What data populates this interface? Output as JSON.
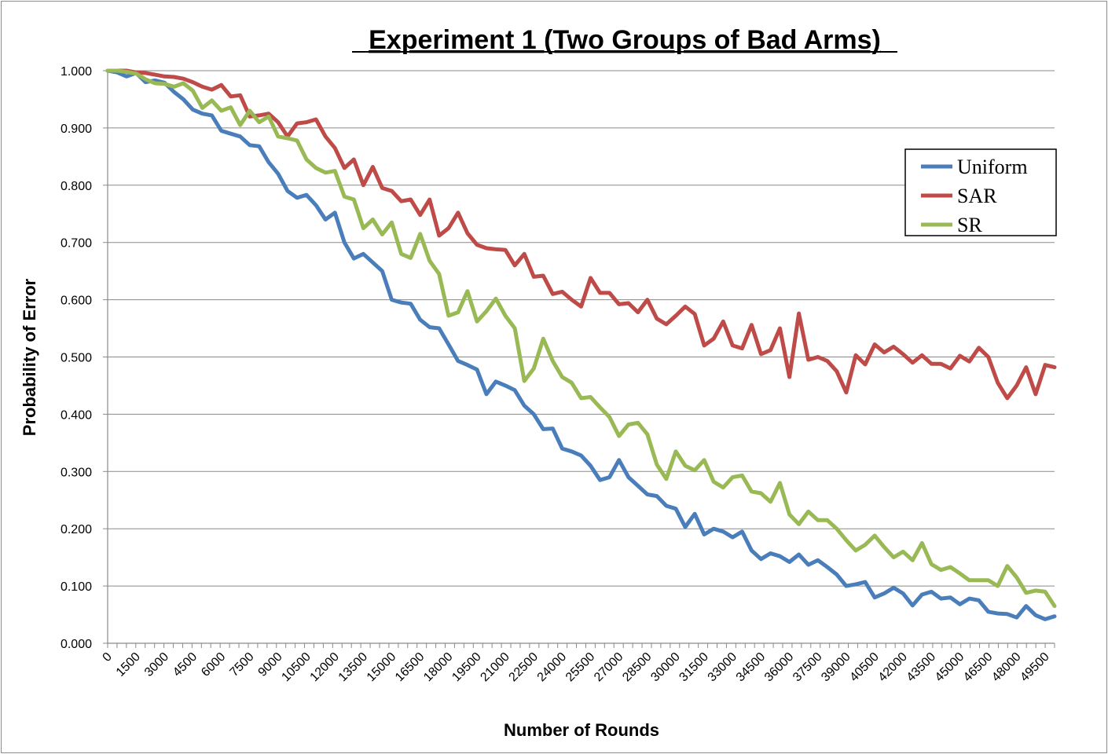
{
  "chart_data": {
    "type": "line",
    "title": "Experiment 1 (Two Groups of Bad Arms)",
    "xlabel": "Number of Rounds",
    "ylabel": "Probability of Error",
    "ylim": [
      0,
      1
    ],
    "yticks": [
      "0.000",
      "0.100",
      "0.200",
      "0.300",
      "0.400",
      "0.500",
      "0.600",
      "0.700",
      "0.800",
      "0.900",
      "1.000"
    ],
    "xtick_labels": [
      "0",
      "1500",
      "3000",
      "4500",
      "6000",
      "7500",
      "9000",
      "10500",
      "12000",
      "13500",
      "15000",
      "16500",
      "18000",
      "19500",
      "21000",
      "22500",
      "24000",
      "25500",
      "27000",
      "28500",
      "30000",
      "31500",
      "33000",
      "34500",
      "36000",
      "37500",
      "39000",
      "40500",
      "42000",
      "43500",
      "45000",
      "46500",
      "48000",
      "49500"
    ],
    "x_start": 0,
    "x_step": 500,
    "grid": "horizontal",
    "legend_position": "top-right",
    "series": [
      {
        "name": "Uniform",
        "color": "#4a7ebb",
        "values": [
          1.0,
          0.997,
          0.99,
          0.996,
          0.98,
          0.983,
          0.979,
          0.963,
          0.95,
          0.932,
          0.925,
          0.922,
          0.895,
          0.89,
          0.885,
          0.87,
          0.868,
          0.84,
          0.82,
          0.79,
          0.778,
          0.783,
          0.765,
          0.74,
          0.752,
          0.7,
          0.672,
          0.68,
          0.665,
          0.65,
          0.6,
          0.595,
          0.593,
          0.565,
          0.552,
          0.55,
          0.522,
          0.493,
          0.486,
          0.478,
          0.435,
          0.457,
          0.45,
          0.442,
          0.415,
          0.4,
          0.374,
          0.375,
          0.34,
          0.335,
          0.328,
          0.31,
          0.285,
          0.29,
          0.32,
          0.29,
          0.275,
          0.26,
          0.257,
          0.24,
          0.235,
          0.203,
          0.226,
          0.19,
          0.2,
          0.195,
          0.185,
          0.195,
          0.162,
          0.147,
          0.157,
          0.152,
          0.142,
          0.155,
          0.137,
          0.145,
          0.133,
          0.12,
          0.1,
          0.103,
          0.107,
          0.08,
          0.087,
          0.097,
          0.087,
          0.066,
          0.085,
          0.09,
          0.078,
          0.08,
          0.068,
          0.078,
          0.075,
          0.055,
          0.052,
          0.051,
          0.045,
          0.065,
          0.049,
          0.042,
          0.047
        ]
      },
      {
        "name": "SAR",
        "color": "#be4b48",
        "values": [
          1.0,
          1.0,
          1.0,
          0.997,
          0.996,
          0.993,
          0.99,
          0.989,
          0.986,
          0.98,
          0.972,
          0.967,
          0.975,
          0.955,
          0.957,
          0.92,
          0.922,
          0.925,
          0.91,
          0.885,
          0.908,
          0.91,
          0.915,
          0.885,
          0.865,
          0.83,
          0.845,
          0.8,
          0.832,
          0.795,
          0.79,
          0.772,
          0.775,
          0.748,
          0.775,
          0.712,
          0.725,
          0.752,
          0.716,
          0.696,
          0.69,
          0.688,
          0.687,
          0.66,
          0.68,
          0.64,
          0.642,
          0.61,
          0.614,
          0.6,
          0.588,
          0.638,
          0.612,
          0.612,
          0.592,
          0.594,
          0.578,
          0.6,
          0.567,
          0.557,
          0.572,
          0.588,
          0.575,
          0.52,
          0.532,
          0.562,
          0.52,
          0.515,
          0.556,
          0.505,
          0.512,
          0.55,
          0.465,
          0.576,
          0.495,
          0.5,
          0.493,
          0.475,
          0.438,
          0.503,
          0.487,
          0.522,
          0.508,
          0.518,
          0.505,
          0.49,
          0.503,
          0.488,
          0.488,
          0.48,
          0.502,
          0.492,
          0.516,
          0.5,
          0.455,
          0.428,
          0.45,
          0.482,
          0.435,
          0.486,
          0.482
        ]
      },
      {
        "name": "SR",
        "color": "#98b954",
        "values": [
          1.0,
          1.0,
          0.998,
          0.995,
          0.985,
          0.978,
          0.977,
          0.972,
          0.978,
          0.965,
          0.935,
          0.948,
          0.93,
          0.936,
          0.905,
          0.93,
          0.91,
          0.92,
          0.885,
          0.882,
          0.878,
          0.845,
          0.83,
          0.822,
          0.825,
          0.78,
          0.775,
          0.725,
          0.74,
          0.714,
          0.735,
          0.68,
          0.673,
          0.715,
          0.668,
          0.645,
          0.572,
          0.578,
          0.615,
          0.562,
          0.58,
          0.602,
          0.572,
          0.55,
          0.458,
          0.48,
          0.532,
          0.493,
          0.465,
          0.455,
          0.428,
          0.43,
          0.412,
          0.395,
          0.362,
          0.382,
          0.385,
          0.365,
          0.312,
          0.287,
          0.335,
          0.31,
          0.302,
          0.32,
          0.282,
          0.272,
          0.29,
          0.293,
          0.265,
          0.262,
          0.247,
          0.28,
          0.225,
          0.208,
          0.23,
          0.215,
          0.215,
          0.2,
          0.18,
          0.162,
          0.172,
          0.188,
          0.168,
          0.15,
          0.16,
          0.145,
          0.175,
          0.138,
          0.128,
          0.133,
          0.122,
          0.11,
          0.11,
          0.11,
          0.1,
          0.135,
          0.115,
          0.088,
          0.092,
          0.09,
          0.065
        ]
      }
    ]
  }
}
